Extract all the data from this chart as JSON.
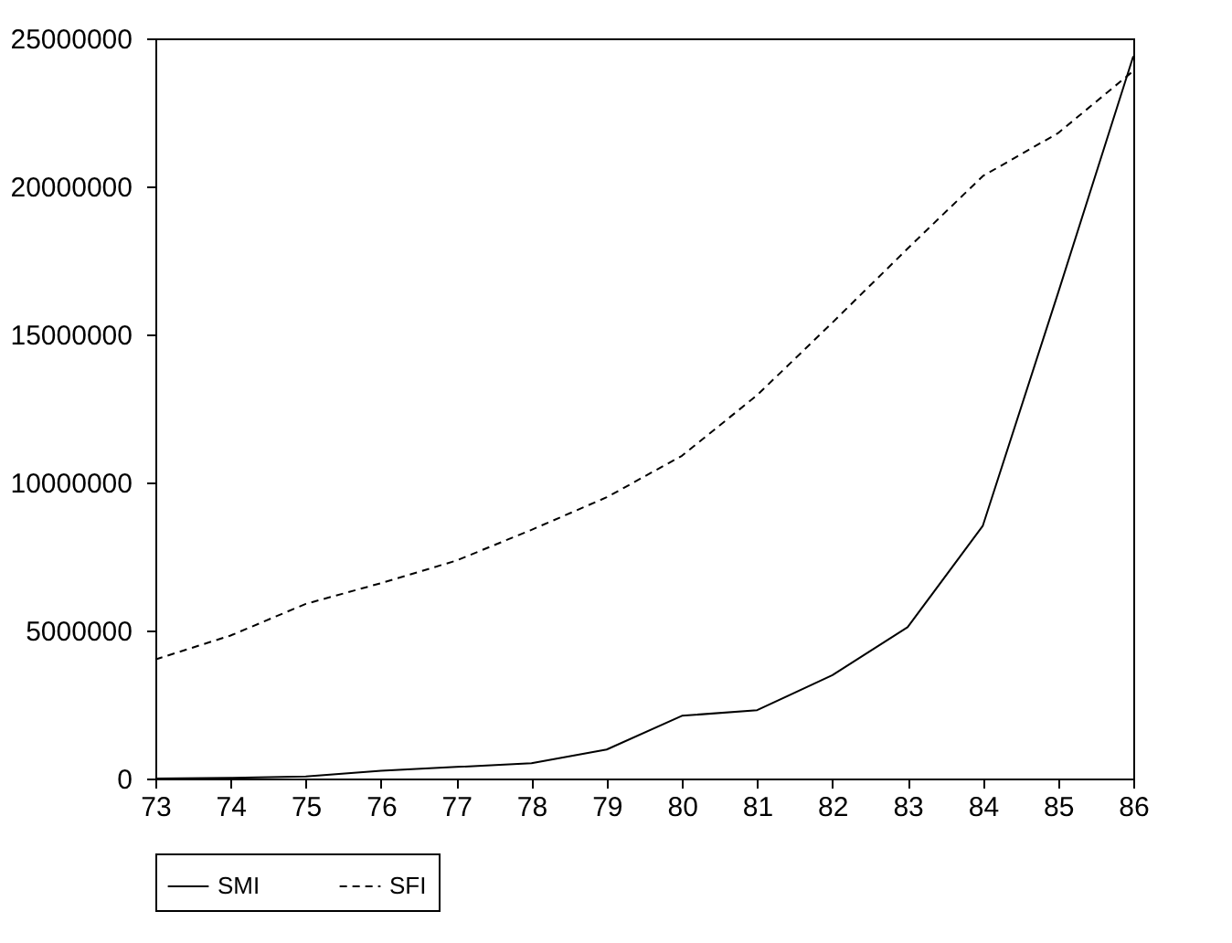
{
  "chart_data": {
    "type": "line",
    "x": [
      73,
      74,
      75,
      76,
      77,
      78,
      79,
      80,
      81,
      82,
      83,
      84,
      85,
      86
    ],
    "series": [
      {
        "name": "SMI",
        "color": "#000000",
        "line_style": "solid",
        "values": [
          0,
          20000,
          70000,
          260000,
          390000,
          520000,
          980000,
          2120000,
          2310000,
          3490000,
          5110000,
          8540000,
          16400000,
          24400000
        ]
      },
      {
        "name": "SFI",
        "color": "#000000",
        "line_style": "dashed",
        "values": [
          4020000,
          4830000,
          5900000,
          6600000,
          7360000,
          8400000,
          9500000,
          10900000,
          12950000,
          15400000,
          17900000,
          20350000,
          21800000,
          23900000
        ]
      }
    ],
    "xlim": [
      73,
      86
    ],
    "xticks": [
      73,
      74,
      75,
      76,
      77,
      78,
      79,
      80,
      81,
      82,
      83,
      84,
      85,
      86
    ],
    "ylim": [
      0,
      25000000
    ],
    "yticks": [
      0,
      5000000,
      10000000,
      15000000,
      20000000,
      25000000
    ],
    "grid": false,
    "legend": "bottom",
    "marker": "none"
  }
}
